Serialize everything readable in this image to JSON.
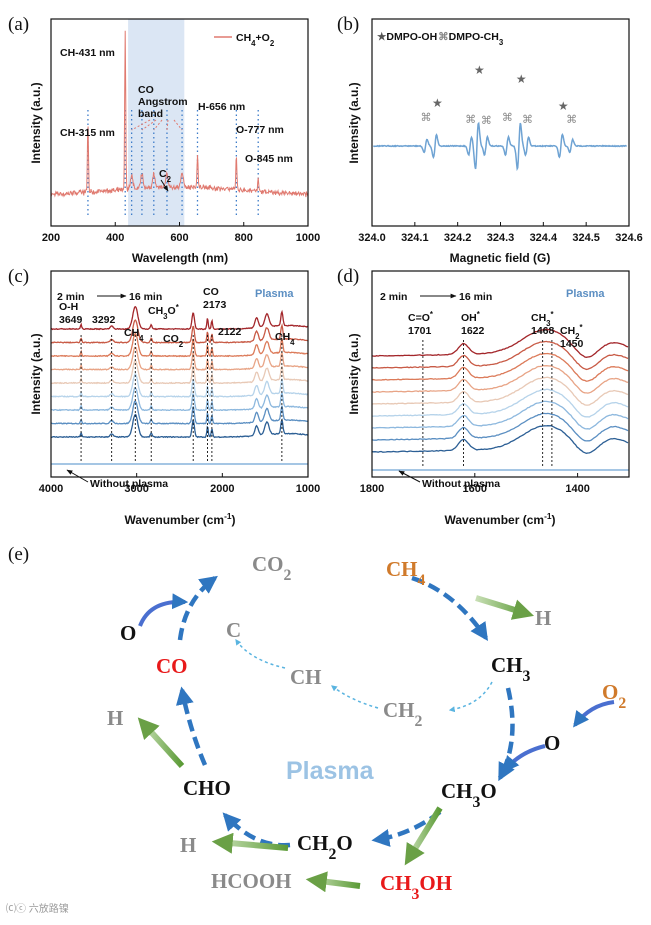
{
  "panels": {
    "a": "(a)",
    "b": "(b)",
    "c": "(c)",
    "d": "(d)",
    "e": "(e)"
  },
  "colors": {
    "red": "#e07a70",
    "blue": "#6fa3d3",
    "orange": "#d07a2b",
    "gray": "#8a8a8a",
    "co_red": "#e8191a",
    "plasma_text": "#9cc3e4",
    "green": "#6aa046",
    "arrow_blue": "#2f76c0"
  },
  "watermark": "⒞ⓒ 六放路镍",
  "chart_data": [
    {
      "id": "a",
      "type": "line",
      "xlabel": "Wavelength (nm)",
      "ylabel": "Intensity (a.u.)",
      "xlim": [
        200,
        1000
      ],
      "xticks": [
        "200",
        "400",
        "600",
        "800",
        "1000"
      ],
      "legend": "CH4+O2",
      "shaded_band": [
        440,
        615
      ],
      "peaks": [
        {
          "x": 315,
          "label": "CH-315 nm",
          "h": 0.42
        },
        {
          "x": 431,
          "label": "CH-431 nm",
          "h": 0.95
        },
        {
          "x": 656,
          "label": "H-656 nm",
          "h": 0.2
        },
        {
          "x": 777,
          "label": "O-777 nm",
          "h": 0.22
        },
        {
          "x": 845,
          "label": "O-845 nm",
          "h": 0.08
        }
      ],
      "band_label": [
        "CO",
        "Angstrom",
        "band"
      ],
      "c2_label": "C2",
      "dotted_lines": [
        315,
        431,
        451,
        483,
        520,
        561,
        608,
        656,
        777,
        845
      ]
    },
    {
      "id": "b",
      "type": "line",
      "xlabel": "Magnetic field (G)",
      "ylabel": "Intensity (a.u.)",
      "xlim": [
        324.0,
        324.6
      ],
      "xticks": [
        "324.0",
        "324.1",
        "324.2",
        "324.3",
        "324.4",
        "324.5",
        "324.6"
      ],
      "legend": [
        "DMPO-OH",
        "DMPO-CH3"
      ],
      "dmpo_oh_lines": [
        324.147,
        324.245,
        324.343,
        324.441
      ],
      "dmpo_ch3_lines": [
        324.125,
        324.229,
        324.266,
        324.315,
        324.362,
        324.465
      ]
    },
    {
      "id": "c",
      "type": "line",
      "xlabel": "Wavenumber (cm-1)",
      "ylabel": "Intensity (a.u.)",
      "xlim": [
        4000,
        1000
      ],
      "xticks": [
        "4000",
        "3000",
        "2000",
        "1000"
      ],
      "time_label": [
        "2 min",
        "16 min"
      ],
      "plasma": "Plasma",
      "without_plasma": "Without plasma",
      "series_count": 9,
      "annotations": [
        {
          "x": 3649,
          "label": [
            "O-H",
            "3649"
          ]
        },
        {
          "x": 3292,
          "label": [
            "3292"
          ]
        },
        {
          "x": 3016,
          "label": [
            "CH4"
          ]
        },
        {
          "x": 2830,
          "label": [
            "CH3O*"
          ]
        },
        {
          "x": 2340,
          "label": [
            "CO2"
          ]
        },
        {
          "x": 2173,
          "label": [
            "CO",
            "2173"
          ]
        },
        {
          "x": 2122,
          "label": [
            "2122"
          ]
        },
        {
          "x": 1305,
          "label": [
            "CH4"
          ]
        }
      ]
    },
    {
      "id": "d",
      "type": "line",
      "xlabel": "Wavenumber (cm-1)",
      "ylabel": "Intensity (a.u.)",
      "xlim": [
        1800,
        1300
      ],
      "xticks": [
        "1800",
        "1600",
        "1400"
      ],
      "time_label": [
        "2 min",
        "16 min"
      ],
      "plasma": "Plasma",
      "without_plasma": "Without plasma",
      "series_count": 9,
      "annotations": [
        {
          "x": 1701,
          "label": [
            "C=O*",
            "1701"
          ]
        },
        {
          "x": 1622,
          "label": [
            "OH*",
            "1622"
          ]
        },
        {
          "x": 1468,
          "label": [
            "CH3*",
            "1468"
          ]
        },
        {
          "x": 1450,
          "label": [
            "CH2*",
            "1450"
          ]
        }
      ]
    }
  ],
  "diagram": {
    "species": {
      "CO2": "CO2",
      "CH4": "CH4",
      "H_top": "H",
      "CH3": "CH3",
      "O_right": "O",
      "O2": "O2",
      "CH3O": "CH3O",
      "CH3OH": "CH3OH",
      "CH2O": "CH2O",
      "CHO": "CHO",
      "CO": "CO",
      "O_left": "O",
      "H_left": "H",
      "H_bottom": "H",
      "HCOOH": "HCOOH",
      "C": "C",
      "CH": "CH",
      "CH2": "CH2",
      "plasma": "Plasma"
    }
  }
}
